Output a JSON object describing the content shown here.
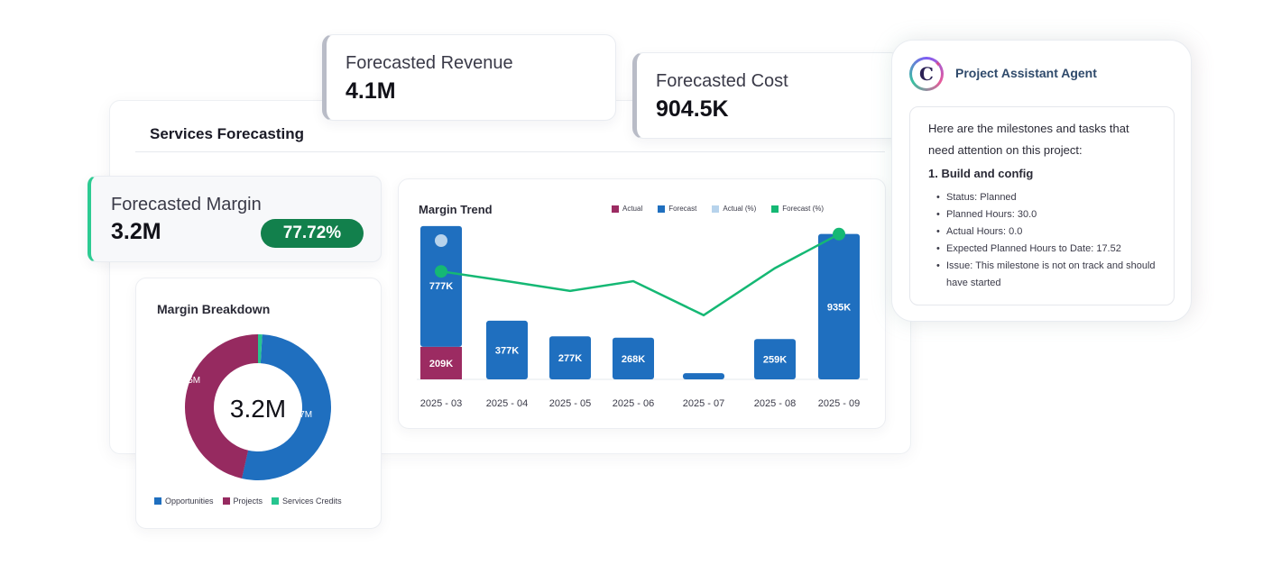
{
  "services_panel": {
    "title": "Services Forecasting"
  },
  "kpis": {
    "revenue": {
      "label": "Forecasted Revenue",
      "value": "4.1M"
    },
    "cost": {
      "label": "Forecasted Cost",
      "value": "904.5K"
    },
    "margin": {
      "label": "Forecasted Margin",
      "value": "3.2M",
      "percent": "77.72%"
    }
  },
  "colors": {
    "actual": "#9c2b62",
    "forecast": "#1f6fbf",
    "actual_pct": "#b7d3ec",
    "forecast_pct": "#15b874",
    "opportunities": "#1f6fbf",
    "projects": "#962a60",
    "services_credits": "#26c58f",
    "margin_badge": "#12804c"
  },
  "breakdown": {
    "title": "Margin Breakdown",
    "center_label": "3.2M",
    "legend": [
      "Opportunities",
      "Projects",
      "Services Credits"
    ]
  },
  "trend": {
    "title": "Margin Trend",
    "legend": [
      "Actual",
      "Forecast",
      "Actual (%)",
      "Forecast (%)"
    ]
  },
  "chart_data": [
    {
      "type": "pie",
      "title": "Margin Breakdown",
      "center_text": "3.2M",
      "labels": [
        "Opportunities",
        "Projects",
        "Services Credits"
      ],
      "values": [
        1.7,
        1.5,
        0.03
      ],
      "value_labels": [
        "1.7M",
        "1.5M",
        ""
      ]
    },
    {
      "type": "bar",
      "title": "Margin Trend",
      "categories": [
        "2025 - 03",
        "2025 - 04",
        "2025 - 05",
        "2025 - 06",
        "2025 - 07",
        "2025 - 08",
        "2025 - 09"
      ],
      "series": [
        {
          "name": "Actual",
          "values": [
            209,
            0,
            0,
            0,
            0,
            0,
            0
          ],
          "labels": [
            "209K",
            "",
            "",
            "",
            "",
            "",
            ""
          ]
        },
        {
          "name": "Forecast",
          "values": [
            777,
            377,
            277,
            268,
            40,
            259,
            935
          ],
          "labels": [
            "777K",
            "377K",
            "277K",
            "268K",
            "",
            "259K",
            "935K"
          ]
        },
        {
          "name": "Actual (%)",
          "values": [
            90,
            null,
            null,
            null,
            null,
            null,
            null
          ]
        },
        {
          "name": "Forecast (%)",
          "values": [
            71,
            65,
            59,
            65,
            44,
            73,
            94
          ]
        }
      ],
      "stacked": true
    }
  ],
  "assistant": {
    "name": "Project Assistant Agent",
    "logo_letter": "C",
    "intro": "Here are the milestones and tasks that need attention on this project:",
    "milestone": "1. Build and config",
    "bullets": [
      "Status: Planned",
      "Planned Hours: 30.0",
      "Actual Hours: 0.0",
      "Expected Planned Hours to Date: 17.52",
      "Issue: This milestone is not on track and should have started"
    ]
  }
}
